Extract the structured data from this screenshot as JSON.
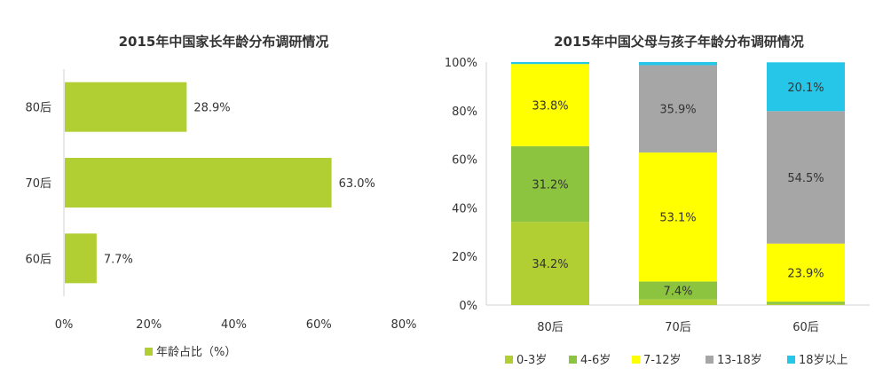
{
  "chart_data": [
    {
      "type": "bar",
      "orientation": "horizontal",
      "title": "2015年中国家长年龄分布调研情况",
      "categories": [
        "80后",
        "70后",
        "60后"
      ],
      "series": [
        {
          "name": "年龄占比（%）",
          "values": [
            28.9,
            63.0,
            7.7
          ],
          "labels": [
            "28.9%",
            "63.0%",
            "7.7%"
          ]
        }
      ],
      "xlim": [
        0,
        80
      ],
      "xticks": [
        "0%",
        "20%",
        "40%",
        "60%",
        "80%"
      ],
      "grid": false,
      "legend": "bottom",
      "colors": {
        "bar": "#b1cf32"
      }
    },
    {
      "type": "bar",
      "stacked": true,
      "title": "2015年中国父母与孩子年龄分布调研情况",
      "categories": [
        "80后",
        "70后",
        "60后"
      ],
      "series": [
        {
          "name": "0-3岁",
          "values": [
            34.2,
            2.3,
            0.4
          ],
          "labels": [
            "34.2%",
            "",
            ""
          ],
          "color": "#b1cf32"
        },
        {
          "name": "4-6岁",
          "values": [
            31.2,
            7.4,
            1.0
          ],
          "labels": [
            "31.2%",
            "7.4%",
            ""
          ],
          "color": "#8dc43f"
        },
        {
          "name": "7-12岁",
          "values": [
            33.8,
            53.1,
            23.9
          ],
          "labels": [
            "33.8%",
            "53.1%",
            "23.9%"
          ],
          "color": "#ffff00"
        },
        {
          "name": "13-18岁",
          "values": [
            0.0,
            35.9,
            54.5
          ],
          "labels": [
            "",
            "35.9%",
            "54.5%"
          ],
          "color": "#a6a6a6"
        },
        {
          "name": "18岁以上",
          "values": [
            0.8,
            1.3,
            20.1
          ],
          "labels": [
            "",
            "",
            "20.1%"
          ],
          "color": "#26c6e8"
        }
      ],
      "ylim": [
        0,
        100
      ],
      "yticks": [
        "0%",
        "20%",
        "40%",
        "60%",
        "80%",
        "100%"
      ],
      "grid": false,
      "legend": "bottom"
    }
  ]
}
